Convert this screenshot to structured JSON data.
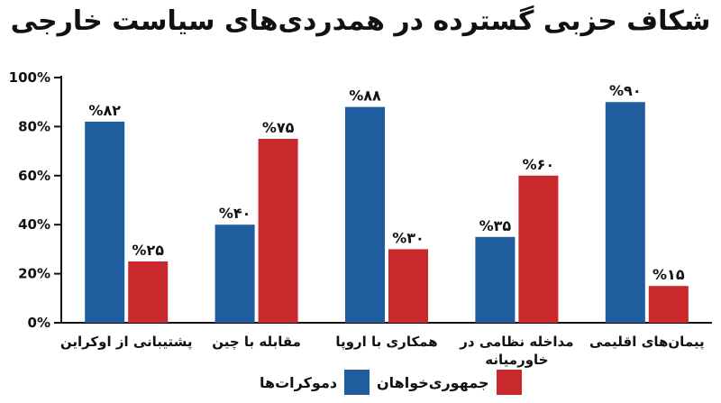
{
  "chart_data": {
    "type": "bar",
    "title": "شکاف حزبی گسترده در همدردی‌های سیاست خارجی",
    "xlabel": "",
    "ylabel": "",
    "ylim": [
      0,
      100
    ],
    "yticks": [
      0,
      20,
      40,
      60,
      80,
      100
    ],
    "ytick_labels": [
      "0%",
      "20%",
      "40%",
      "60%",
      "80%",
      "100%"
    ],
    "categories": [
      [
        "پشتیبانی از اوکراین"
      ],
      [
        "مقابله با چین"
      ],
      [
        "همکاری با اروپا"
      ],
      [
        "مداخله نظامی در",
        "خاورمیانه"
      ],
      [
        "پیمان‌های اقلیمی"
      ]
    ],
    "series": [
      {
        "name": "دموکرات‌ها",
        "color": "#1f5d9e",
        "values": [
          82,
          40,
          88,
          35,
          90
        ],
        "labels": [
          "%۸۲",
          "%۴۰",
          "%۸۸",
          "%۳۵",
          "%۹۰"
        ]
      },
      {
        "name": "جمهوری‌خواهان",
        "color": "#c9282d",
        "values": [
          25,
          75,
          30,
          60,
          15
        ],
        "labels": [
          "%۲۵",
          "%۷۵",
          "%۳۰",
          "%۶۰",
          "%۱۵"
        ]
      }
    ],
    "grid": false,
    "legend_position": "bottom"
  }
}
